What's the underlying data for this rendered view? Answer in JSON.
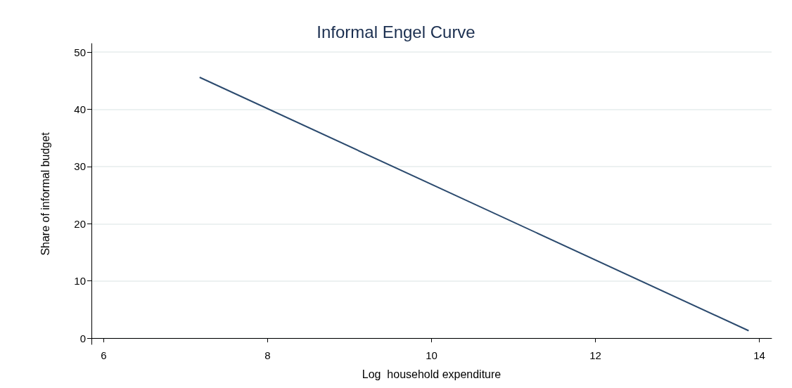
{
  "chart_data": {
    "type": "line",
    "title": "Informal Engel Curve",
    "xlabel": "Log  household expenditure",
    "ylabel": "Share of informal budget",
    "x": [
      7.17,
      13.87
    ],
    "series": [
      {
        "color": "#2b4a6e",
        "values": [
          45.6,
          1.3
        ]
      }
    ],
    "xlim": [
      5.85,
      14.15
    ],
    "xticks": [
      6,
      8,
      10,
      12,
      14
    ],
    "ylim": [
      -1.1,
      51.5
    ],
    "yticks": [
      0,
      10,
      20,
      30,
      40,
      50
    ],
    "grid": "y",
    "marker": "none",
    "line_style": "solid"
  }
}
